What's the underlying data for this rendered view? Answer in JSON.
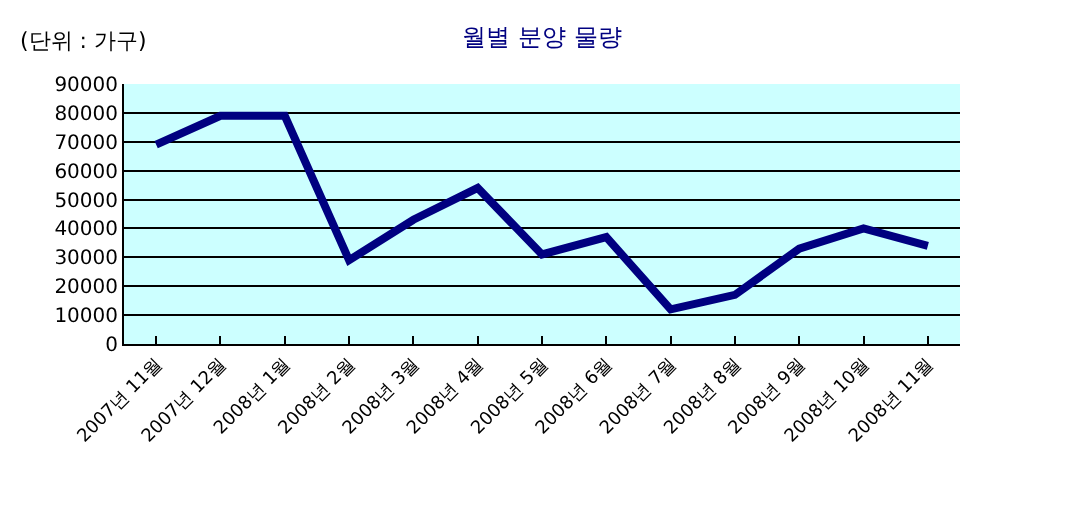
{
  "chart_data": {
    "type": "line",
    "title": "월별 분양 물량",
    "ylabel": "(단위 : 가구)",
    "categories": [
      "2007년 11월",
      "2007년 12월",
      "2008년 1월",
      "2008년 2월",
      "2008년 3월",
      "2008년 4월",
      "2008년 5월",
      "2008년 6월",
      "2008년 7월",
      "2008년 8월",
      "2008년 9월",
      "2008년 10월",
      "2008년 11월"
    ],
    "series": [
      {
        "color": "#000080",
        "values": [
          69000,
          79000,
          79000,
          29000,
          43000,
          54000,
          31000,
          37000,
          12000,
          17000,
          33000,
          40000,
          34000
        ]
      }
    ],
    "ylim": [
      0,
      90000
    ],
    "yticks": [
      0,
      10000,
      20000,
      30000,
      40000,
      50000,
      60000,
      70000,
      80000,
      90000
    ],
    "grid": "y",
    "marker": "none",
    "line_style": "solid"
  }
}
